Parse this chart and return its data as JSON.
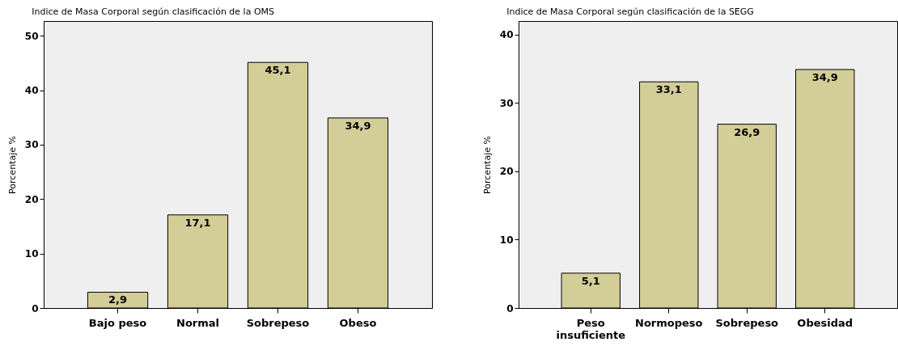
{
  "chart_data": [
    {
      "type": "bar",
      "title": "Indice de Masa Corporal según clasificación de la OMS",
      "ylabel": "Porcentaje %",
      "categories": [
        "Bajo peso",
        "Normal",
        "Sobrepeso",
        "Obeso"
      ],
      "values": [
        2.9,
        17.1,
        45.1,
        34.9
      ],
      "value_labels": [
        "2,9",
        "17,1",
        "45,1",
        "34,9"
      ],
      "color": "#d3cd98",
      "ylim": [
        0,
        52.7
      ],
      "yticks": [
        0,
        10,
        20,
        30,
        40,
        50
      ],
      "grid": false
    },
    {
      "type": "bar",
      "title": "Indice de Masa Corporal según clasificación de la SEGG",
      "ylabel": "Porcentaje %",
      "categories": [
        "Peso insuficiente",
        "Normopeso",
        "Sobrepeso",
        "Obesidad"
      ],
      "values": [
        5.1,
        33.1,
        26.9,
        34.9
      ],
      "value_labels": [
        "5,1",
        "33,1",
        "26,9",
        "34,9"
      ],
      "color": "#d3cd98",
      "ylim": [
        0,
        42
      ],
      "yticks": [
        0,
        10,
        20,
        30,
        40
      ],
      "grid": false
    }
  ]
}
